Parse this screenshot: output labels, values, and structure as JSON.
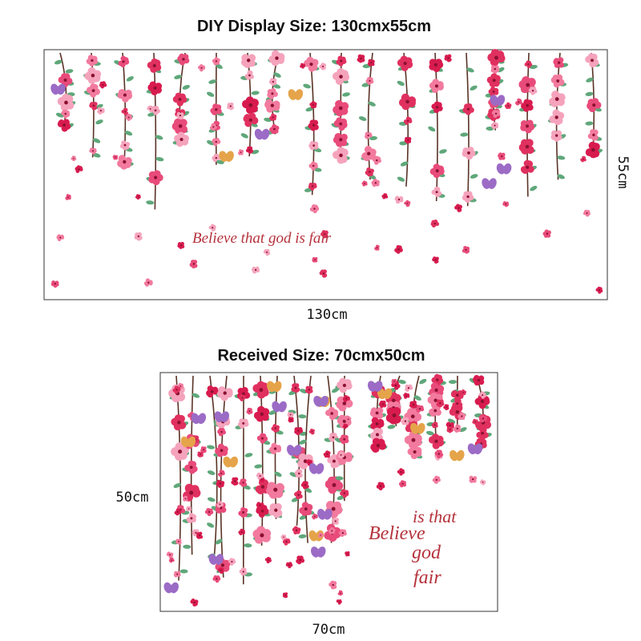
{
  "display": {
    "title": "DIY Display Size: 130cmx55cm",
    "phrase": "Believe that god is fair",
    "width_label": "130cm",
    "height_label": "55cm"
  },
  "received": {
    "title": "Received Size: 70cmx50cm",
    "phrase_parts": [
      "is that",
      "Believe",
      "god",
      "fair"
    ],
    "width_label": "70cm",
    "height_label": "50cm"
  }
}
